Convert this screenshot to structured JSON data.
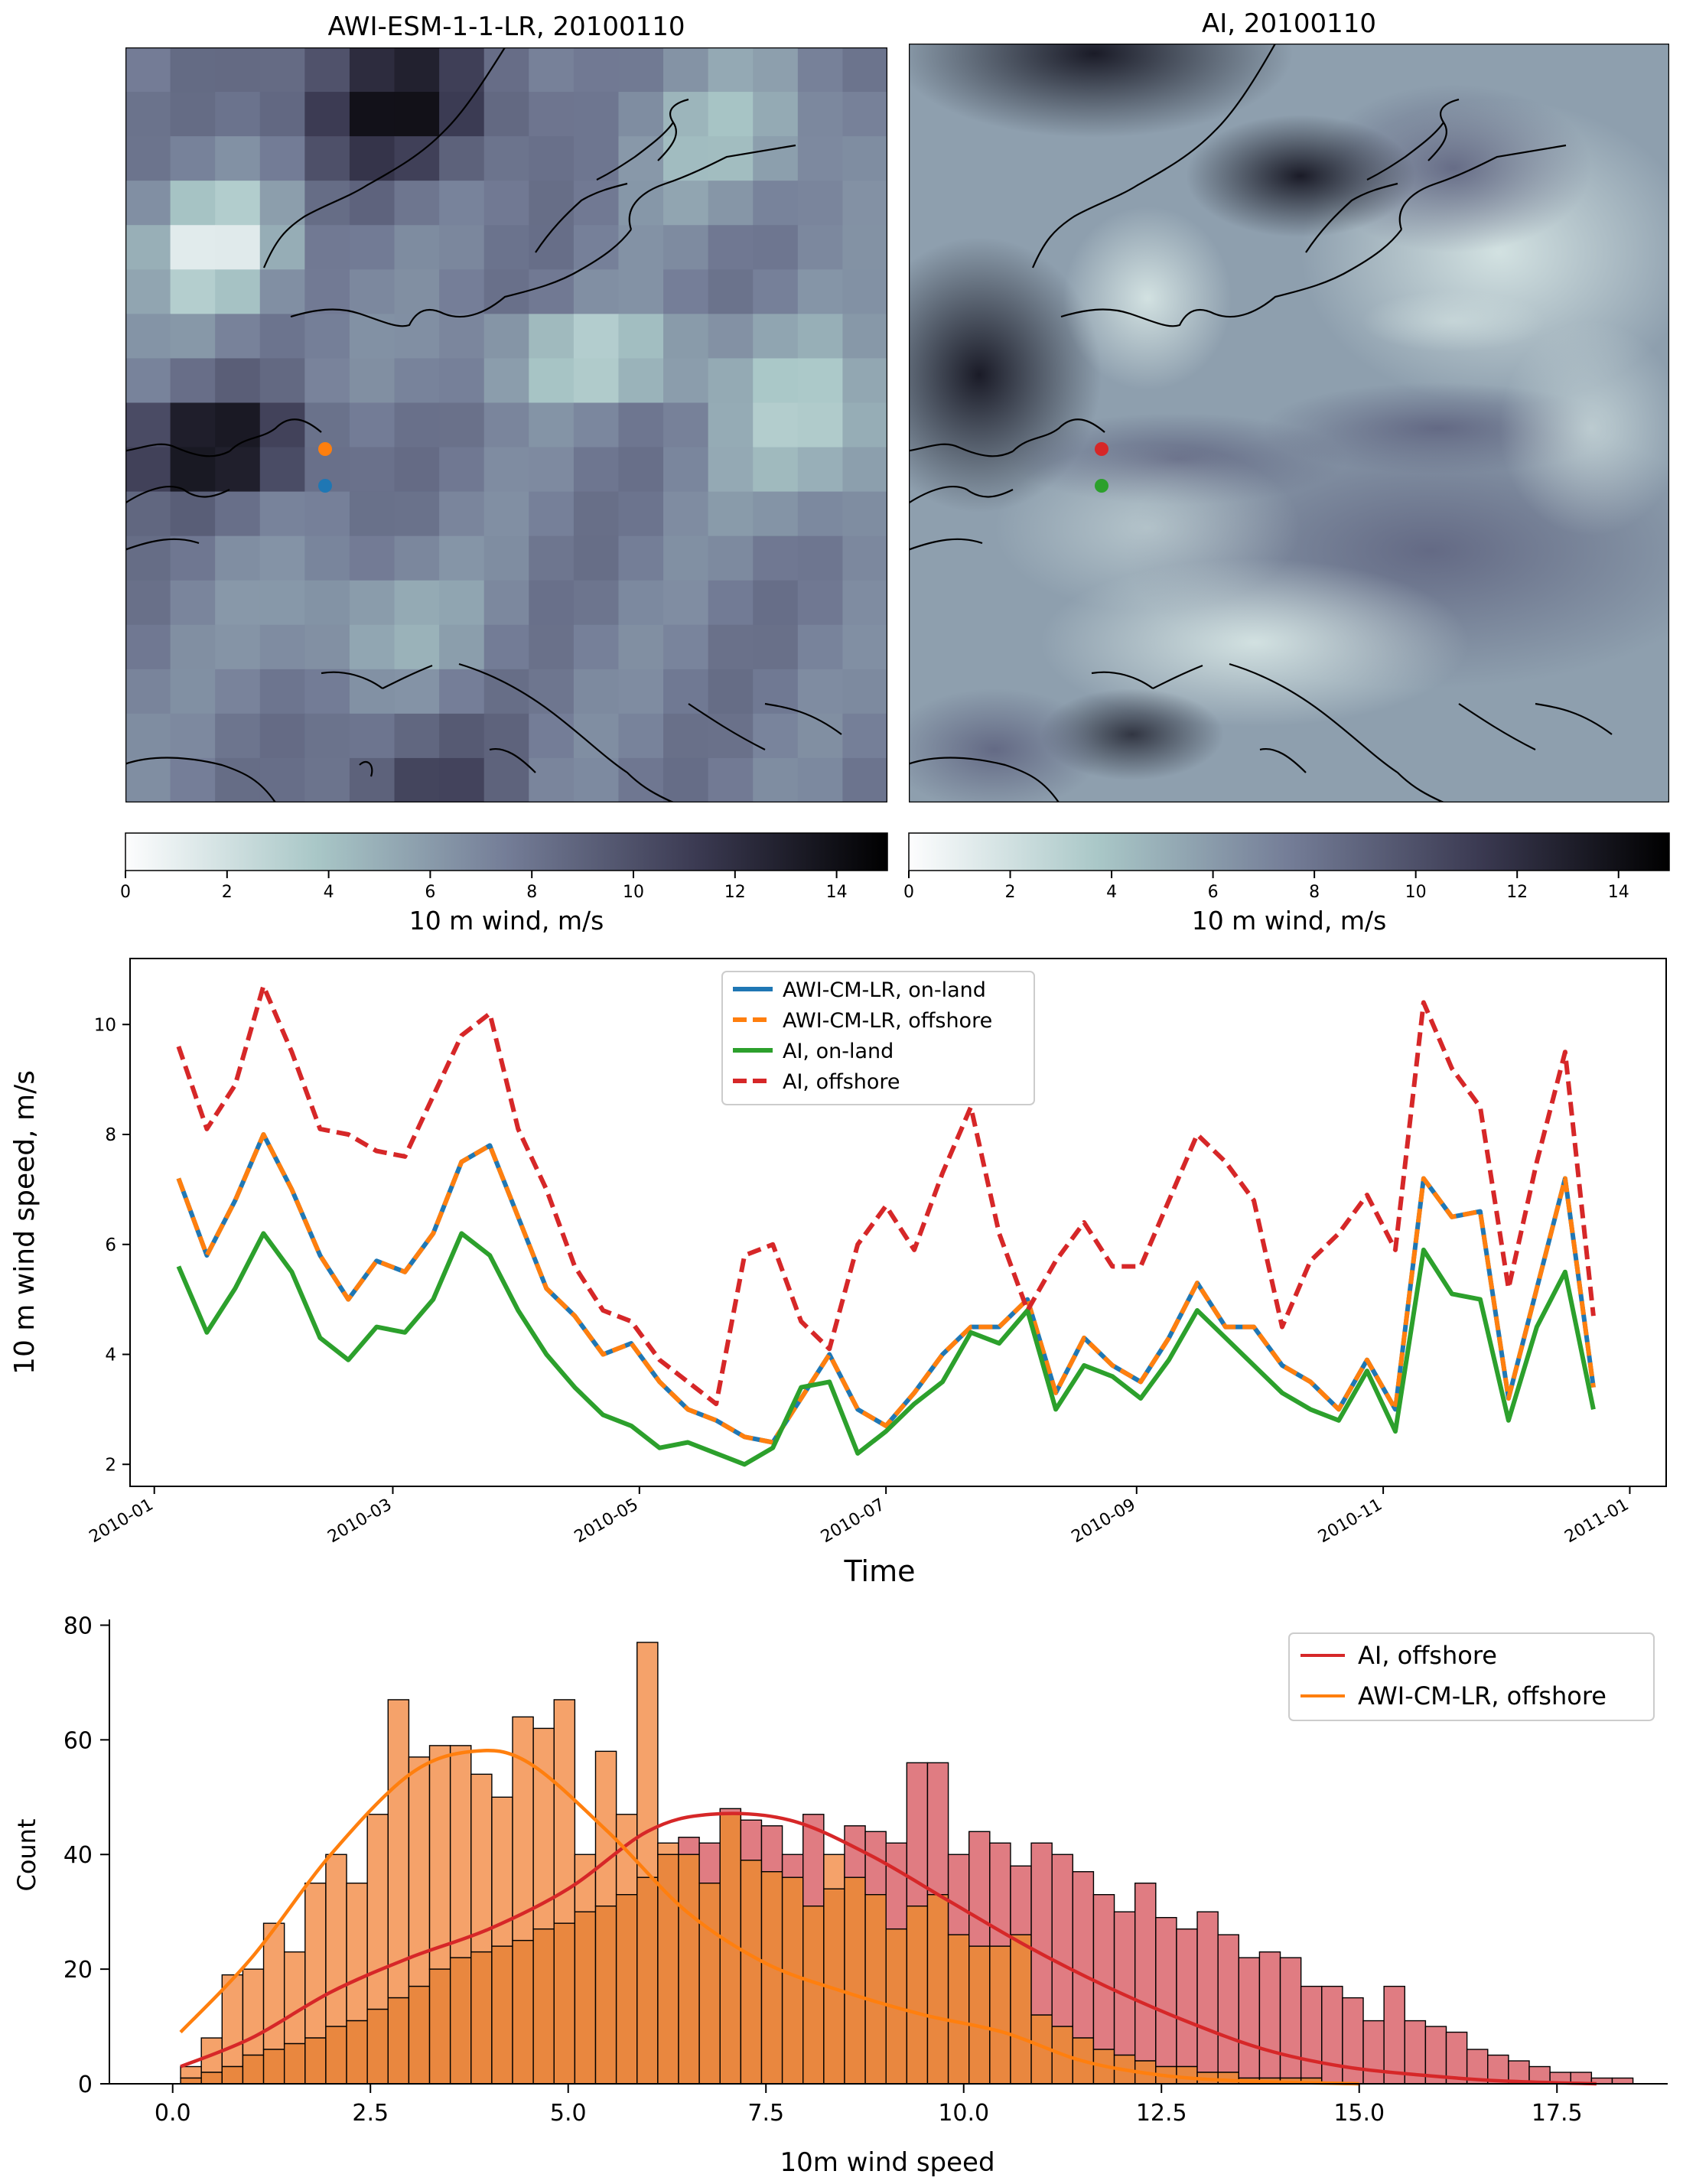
{
  "colors": {
    "blue": "#1f77b4",
    "orange": "#ff7f0e",
    "green": "#2ca02c",
    "red": "#d62728",
    "hist_orange": "#f5a26a",
    "hist_red": "#e07c82",
    "hist_overlap": "#e9873f"
  },
  "maps": {
    "left": {
      "title": "AWI-ESM-1-1-LR, 20100110",
      "colorbar_label": "10 m wind, m/s",
      "colorbar_ticks": [
        "0",
        "2",
        "4",
        "6",
        "8",
        "10",
        "12",
        "14"
      ],
      "colorbar_range": [
        0,
        15
      ],
      "points": [
        {
          "name": "offshore",
          "color": "#ff7f0e"
        },
        {
          "name": "on-land",
          "color": "#1f77b4"
        }
      ]
    },
    "right": {
      "title": "AI, 20100110",
      "colorbar_label": "10 m wind, m/s",
      "colorbar_ticks": [
        "0",
        "2",
        "4",
        "6",
        "8",
        "10",
        "12",
        "14"
      ],
      "colorbar_range": [
        0,
        15
      ],
      "points": [
        {
          "name": "offshore",
          "color": "#d62728"
        },
        {
          "name": "on-land",
          "color": "#2ca02c"
        }
      ]
    }
  },
  "chart_data": [
    {
      "type": "line",
      "title": "",
      "xlabel": "Time",
      "ylabel": "10 m wind speed, m/s",
      "xlim": [
        "2009-12-26",
        "2011-01-10"
      ],
      "ylim": [
        1.6,
        11.2
      ],
      "x_ticks": [
        "2010-01",
        "2010-03",
        "2010-05",
        "2010-07",
        "2010-09",
        "2010-11",
        "2011-01"
      ],
      "y_ticks": [
        2,
        4,
        6,
        8,
        10
      ],
      "x_days": [
        0,
        7,
        14,
        21,
        28,
        35,
        42,
        49,
        56,
        63,
        70,
        77,
        84,
        91,
        98,
        105,
        112,
        119,
        126,
        133,
        140,
        147,
        154,
        161,
        168,
        175,
        182,
        189,
        196,
        203,
        210,
        217,
        224,
        231,
        238,
        245,
        252,
        259,
        266,
        273,
        280,
        287,
        294,
        301,
        308,
        315,
        322,
        329,
        336,
        343,
        350
      ],
      "x_start": "2010-01-07",
      "legend": {
        "location": "upper center",
        "entries": [
          "AWI-CM-LR, on-land",
          "AWI-CM-LR, offshore",
          "AI, on-land",
          "AI, offshore"
        ]
      },
      "series": [
        {
          "name": "AWI-CM-LR, on-land",
          "style": "solid",
          "color": "#1f77b4",
          "values": [
            7.2,
            5.8,
            6.8,
            8.0,
            7.0,
            5.8,
            5.0,
            5.7,
            5.5,
            6.2,
            7.5,
            7.8,
            6.5,
            5.2,
            4.7,
            4.0,
            4.2,
            3.5,
            3.0,
            2.8,
            2.5,
            2.4,
            3.2,
            4.0,
            3.0,
            2.7,
            3.3,
            4.0,
            4.5,
            4.5,
            5.0,
            3.3,
            4.3,
            3.8,
            3.5,
            4.3,
            5.3,
            4.5,
            4.5,
            3.8,
            3.5,
            3.0,
            3.9,
            3.0,
            7.2,
            6.5,
            6.6,
            3.2,
            5.2,
            7.2,
            3.4
          ]
        },
        {
          "name": "AWI-CM-LR, offshore",
          "style": "dashed",
          "color": "#ff7f0e",
          "values": [
            7.2,
            5.8,
            6.8,
            8.0,
            7.0,
            5.8,
            5.0,
            5.7,
            5.5,
            6.2,
            7.5,
            7.8,
            6.5,
            5.2,
            4.7,
            4.0,
            4.2,
            3.5,
            3.0,
            2.8,
            2.5,
            2.4,
            3.2,
            4.0,
            3.0,
            2.7,
            3.3,
            4.0,
            4.5,
            4.5,
            5.0,
            3.3,
            4.3,
            3.8,
            3.5,
            4.3,
            5.3,
            4.5,
            4.5,
            3.8,
            3.5,
            3.0,
            3.9,
            3.0,
            7.2,
            6.5,
            6.6,
            3.2,
            5.2,
            7.2,
            3.4
          ]
        },
        {
          "name": "AI, on-land",
          "style": "solid",
          "color": "#2ca02c",
          "values": [
            5.6,
            4.4,
            5.2,
            6.2,
            5.5,
            4.3,
            3.9,
            4.5,
            4.4,
            5.0,
            6.2,
            5.8,
            4.8,
            4.0,
            3.4,
            2.9,
            2.7,
            2.3,
            2.4,
            2.2,
            2.0,
            2.3,
            3.4,
            3.5,
            2.2,
            2.6,
            3.1,
            3.5,
            4.4,
            4.2,
            4.8,
            3.0,
            3.8,
            3.6,
            3.2,
            3.9,
            4.8,
            4.3,
            3.8,
            3.3,
            3.0,
            2.8,
            3.7,
            2.6,
            5.9,
            5.1,
            5.0,
            2.8,
            4.5,
            5.5,
            3.0
          ]
        },
        {
          "name": "AI, offshore",
          "style": "dashed",
          "color": "#d62728",
          "values": [
            9.6,
            8.1,
            8.9,
            10.7,
            9.5,
            8.1,
            8.0,
            7.7,
            7.6,
            8.7,
            9.8,
            10.2,
            8.1,
            7.0,
            5.6,
            4.8,
            4.6,
            3.9,
            3.5,
            3.1,
            5.8,
            6.0,
            4.6,
            4.1,
            6.0,
            6.7,
            5.9,
            7.3,
            8.5,
            6.2,
            4.8,
            5.7,
            6.4,
            5.6,
            5.6,
            6.8,
            8.0,
            7.5,
            6.8,
            4.5,
            5.7,
            6.2,
            6.9,
            5.9,
            10.4,
            9.2,
            8.5,
            5.2,
            7.5,
            9.5,
            4.7
          ]
        }
      ]
    },
    {
      "type": "histogram",
      "title": "",
      "xlabel": "10m wind speed",
      "ylabel": "Count",
      "xlim": [
        -0.8,
        18.9
      ],
      "ylim": [
        0,
        81
      ],
      "x_ticks": [
        "0.0",
        "2.5",
        "5.0",
        "7.5",
        "10.0",
        "12.5",
        "15.0",
        "17.5"
      ],
      "y_ticks": [
        "0",
        "20",
        "40",
        "60",
        "80"
      ],
      "legend": {
        "location": "upper right",
        "entries": [
          "AI, offshore",
          "AWI-CM-LR, offshore"
        ]
      },
      "bin_start": 0.1,
      "bin_width": 0.2623,
      "series": [
        {
          "name": "AWI-CM-LR, offshore",
          "color": "#ff7f0e",
          "counts": [
            3,
            8,
            19,
            20,
            28,
            23,
            35,
            40,
            35,
            47,
            67,
            57,
            59,
            59,
            54,
            50,
            64,
            62,
            67,
            40,
            58,
            47,
            77,
            42,
            40,
            35,
            47,
            39,
            37,
            36,
            31,
            40,
            36,
            33,
            27,
            31,
            33,
            26,
            24,
            24,
            26,
            12,
            10,
            8,
            6,
            5,
            4,
            3,
            3,
            2,
            2,
            1,
            1,
            1,
            1,
            0,
            0,
            0,
            0,
            0,
            0,
            0,
            0,
            0,
            0,
            0,
            0,
            0,
            0,
            0
          ],
          "kde": [
            [
              0.1,
              9
            ],
            [
              1.0,
              22
            ],
            [
              2.0,
              40
            ],
            [
              3.0,
              54
            ],
            [
              3.8,
              58
            ],
            [
              4.5,
              56
            ],
            [
              5.5,
              44
            ],
            [
              6.5,
              30
            ],
            [
              7.5,
              21
            ],
            [
              8.5,
              16
            ],
            [
              9.5,
              12
            ],
            [
              10.5,
              9
            ],
            [
              11.5,
              4
            ],
            [
              12.5,
              1.5
            ],
            [
              13.5,
              0.5
            ],
            [
              15.0,
              0
            ]
          ]
        },
        {
          "name": "AI, offshore",
          "color": "#d62728",
          "counts": [
            1,
            2,
            3,
            5,
            6,
            7,
            8,
            10,
            11,
            13,
            15,
            17,
            20,
            22,
            23,
            24,
            25,
            27,
            28,
            30,
            31,
            33,
            36,
            40,
            43,
            42,
            48,
            46,
            45,
            40,
            47,
            34,
            45,
            44,
            42,
            56,
            56,
            40,
            44,
            42,
            38,
            42,
            40,
            37,
            33,
            30,
            35,
            29,
            27,
            30,
            26,
            22,
            23,
            22,
            17,
            17,
            15,
            11,
            17,
            11,
            10,
            9,
            6,
            5,
            4,
            3,
            2,
            2,
            1,
            1
          ],
          "kde": [
            [
              0.1,
              3
            ],
            [
              1.0,
              8
            ],
            [
              2.0,
              16
            ],
            [
              3.0,
              22
            ],
            [
              4.0,
              27
            ],
            [
              5.0,
              34
            ],
            [
              6.0,
              44
            ],
            [
              6.8,
              47
            ],
            [
              7.8,
              46
            ],
            [
              8.8,
              40
            ],
            [
              9.8,
              32
            ],
            [
              10.8,
              24
            ],
            [
              11.8,
              17
            ],
            [
              12.8,
              11
            ],
            [
              13.8,
              6
            ],
            [
              14.8,
              3
            ],
            [
              15.8,
              1.5
            ],
            [
              16.8,
              0.5
            ],
            [
              18.0,
              0
            ]
          ]
        }
      ]
    }
  ]
}
